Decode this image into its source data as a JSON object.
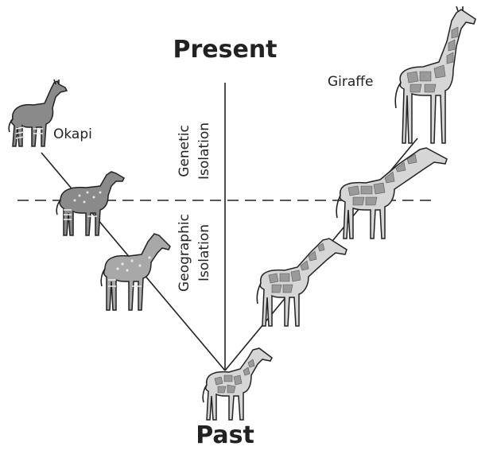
{
  "diagram": {
    "title_top": "Present",
    "title_bottom": "Past",
    "labels": {
      "okapi": "Okapi",
      "giraffe": "Giraffe"
    },
    "phases": {
      "genetic": [
        "Genetic",
        "Isolation"
      ],
      "geographic": [
        "Geographic",
        "Isolation"
      ]
    },
    "animals": [
      {
        "id": "ancestor",
        "kind": "giraffe-like ancestor"
      },
      {
        "id": "okapi-mid-lower",
        "kind": "okapi ancestor"
      },
      {
        "id": "okapi-mid-upper",
        "kind": "okapi ancestor"
      },
      {
        "id": "okapi",
        "kind": "okapi"
      },
      {
        "id": "giraffe-lower",
        "kind": "giraffe ancestor"
      },
      {
        "id": "giraffe-upper",
        "kind": "giraffe ancestor"
      },
      {
        "id": "giraffe",
        "kind": "giraffe"
      }
    ]
  }
}
